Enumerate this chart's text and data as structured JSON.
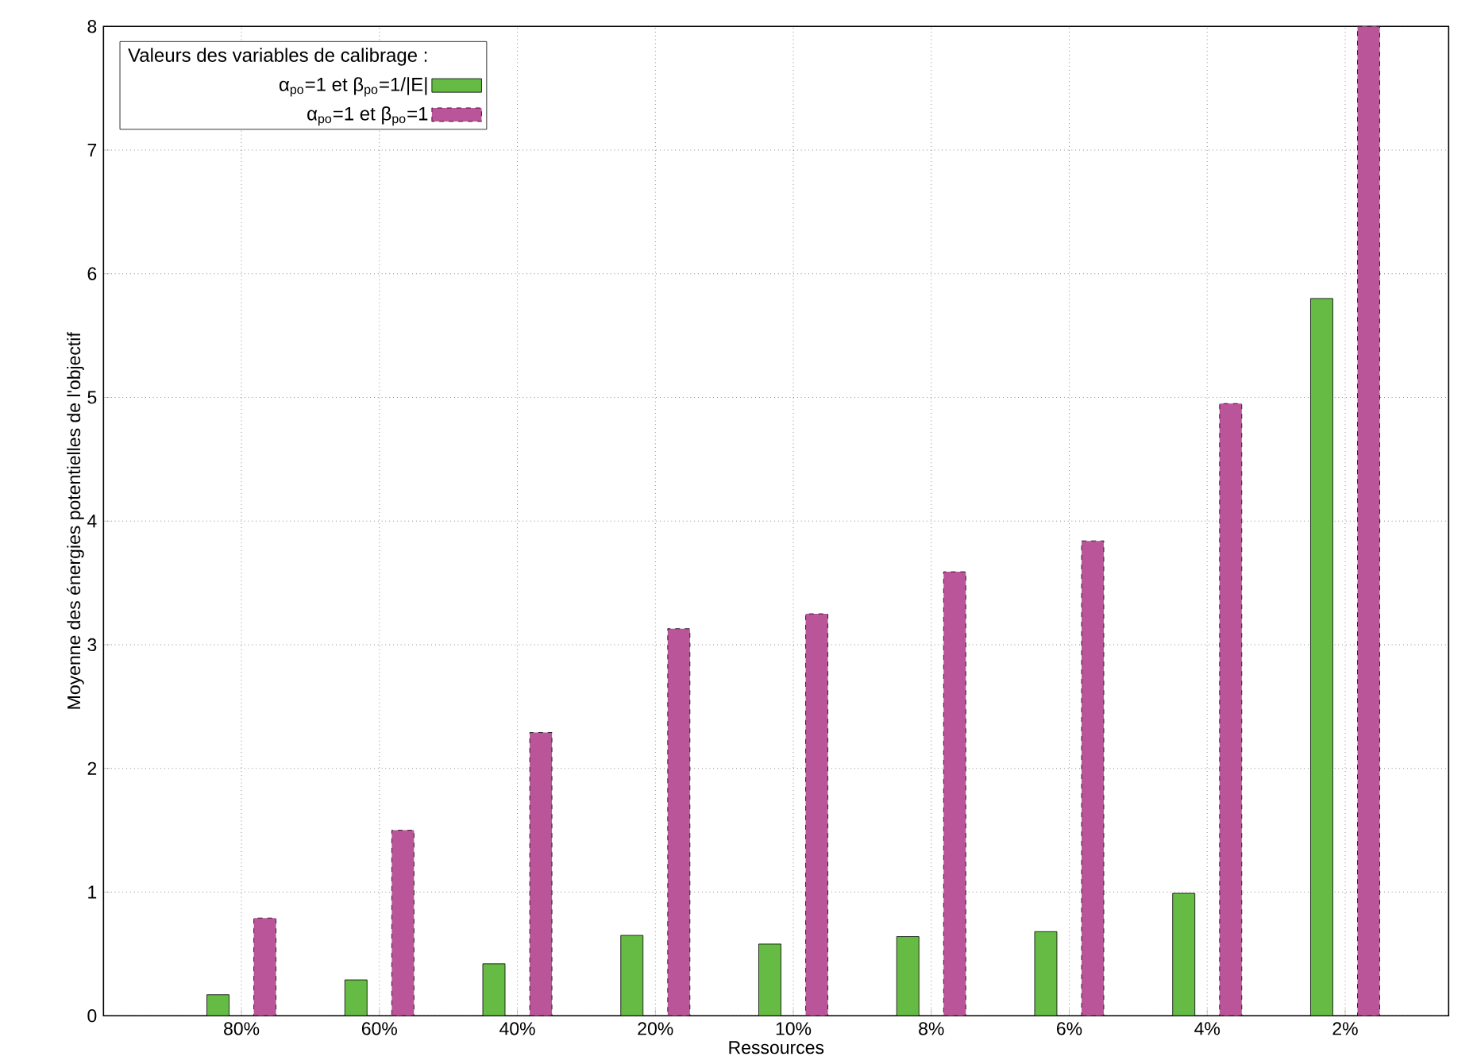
{
  "chart_data": {
    "type": "bar",
    "xlabel": "Ressources",
    "ylabel": "Moyenne des énergies potentielles de l'objectif",
    "legend_title": "Valeurs des variables de calibrage :",
    "categories": [
      "80%",
      "60%",
      "40%",
      "20%",
      "10%",
      "8%",
      "6%",
      "4%",
      "2%"
    ],
    "series": [
      {
        "name": "α$_{po}$=1 et β$_{po}$=1/|E|",
        "color": "#66bb44",
        "line_style": "solid",
        "values": [
          0.17,
          0.29,
          0.42,
          0.65,
          0.58,
          0.64,
          0.68,
          0.99,
          5.8
        ]
      },
      {
        "name": "α$_{po}$=1 et β$_{po}$=1",
        "color": "#bb5599",
        "line_style": "dashed",
        "values": [
          0.79,
          1.5,
          2.29,
          3.13,
          3.25,
          3.59,
          3.84,
          4.95,
          8
        ]
      }
    ],
    "ylim": [
      0,
      8
    ],
    "yticks": [
      0,
      1,
      2,
      3,
      4,
      5,
      6,
      7,
      8
    ],
    "grid": true,
    "legend": "top left"
  }
}
